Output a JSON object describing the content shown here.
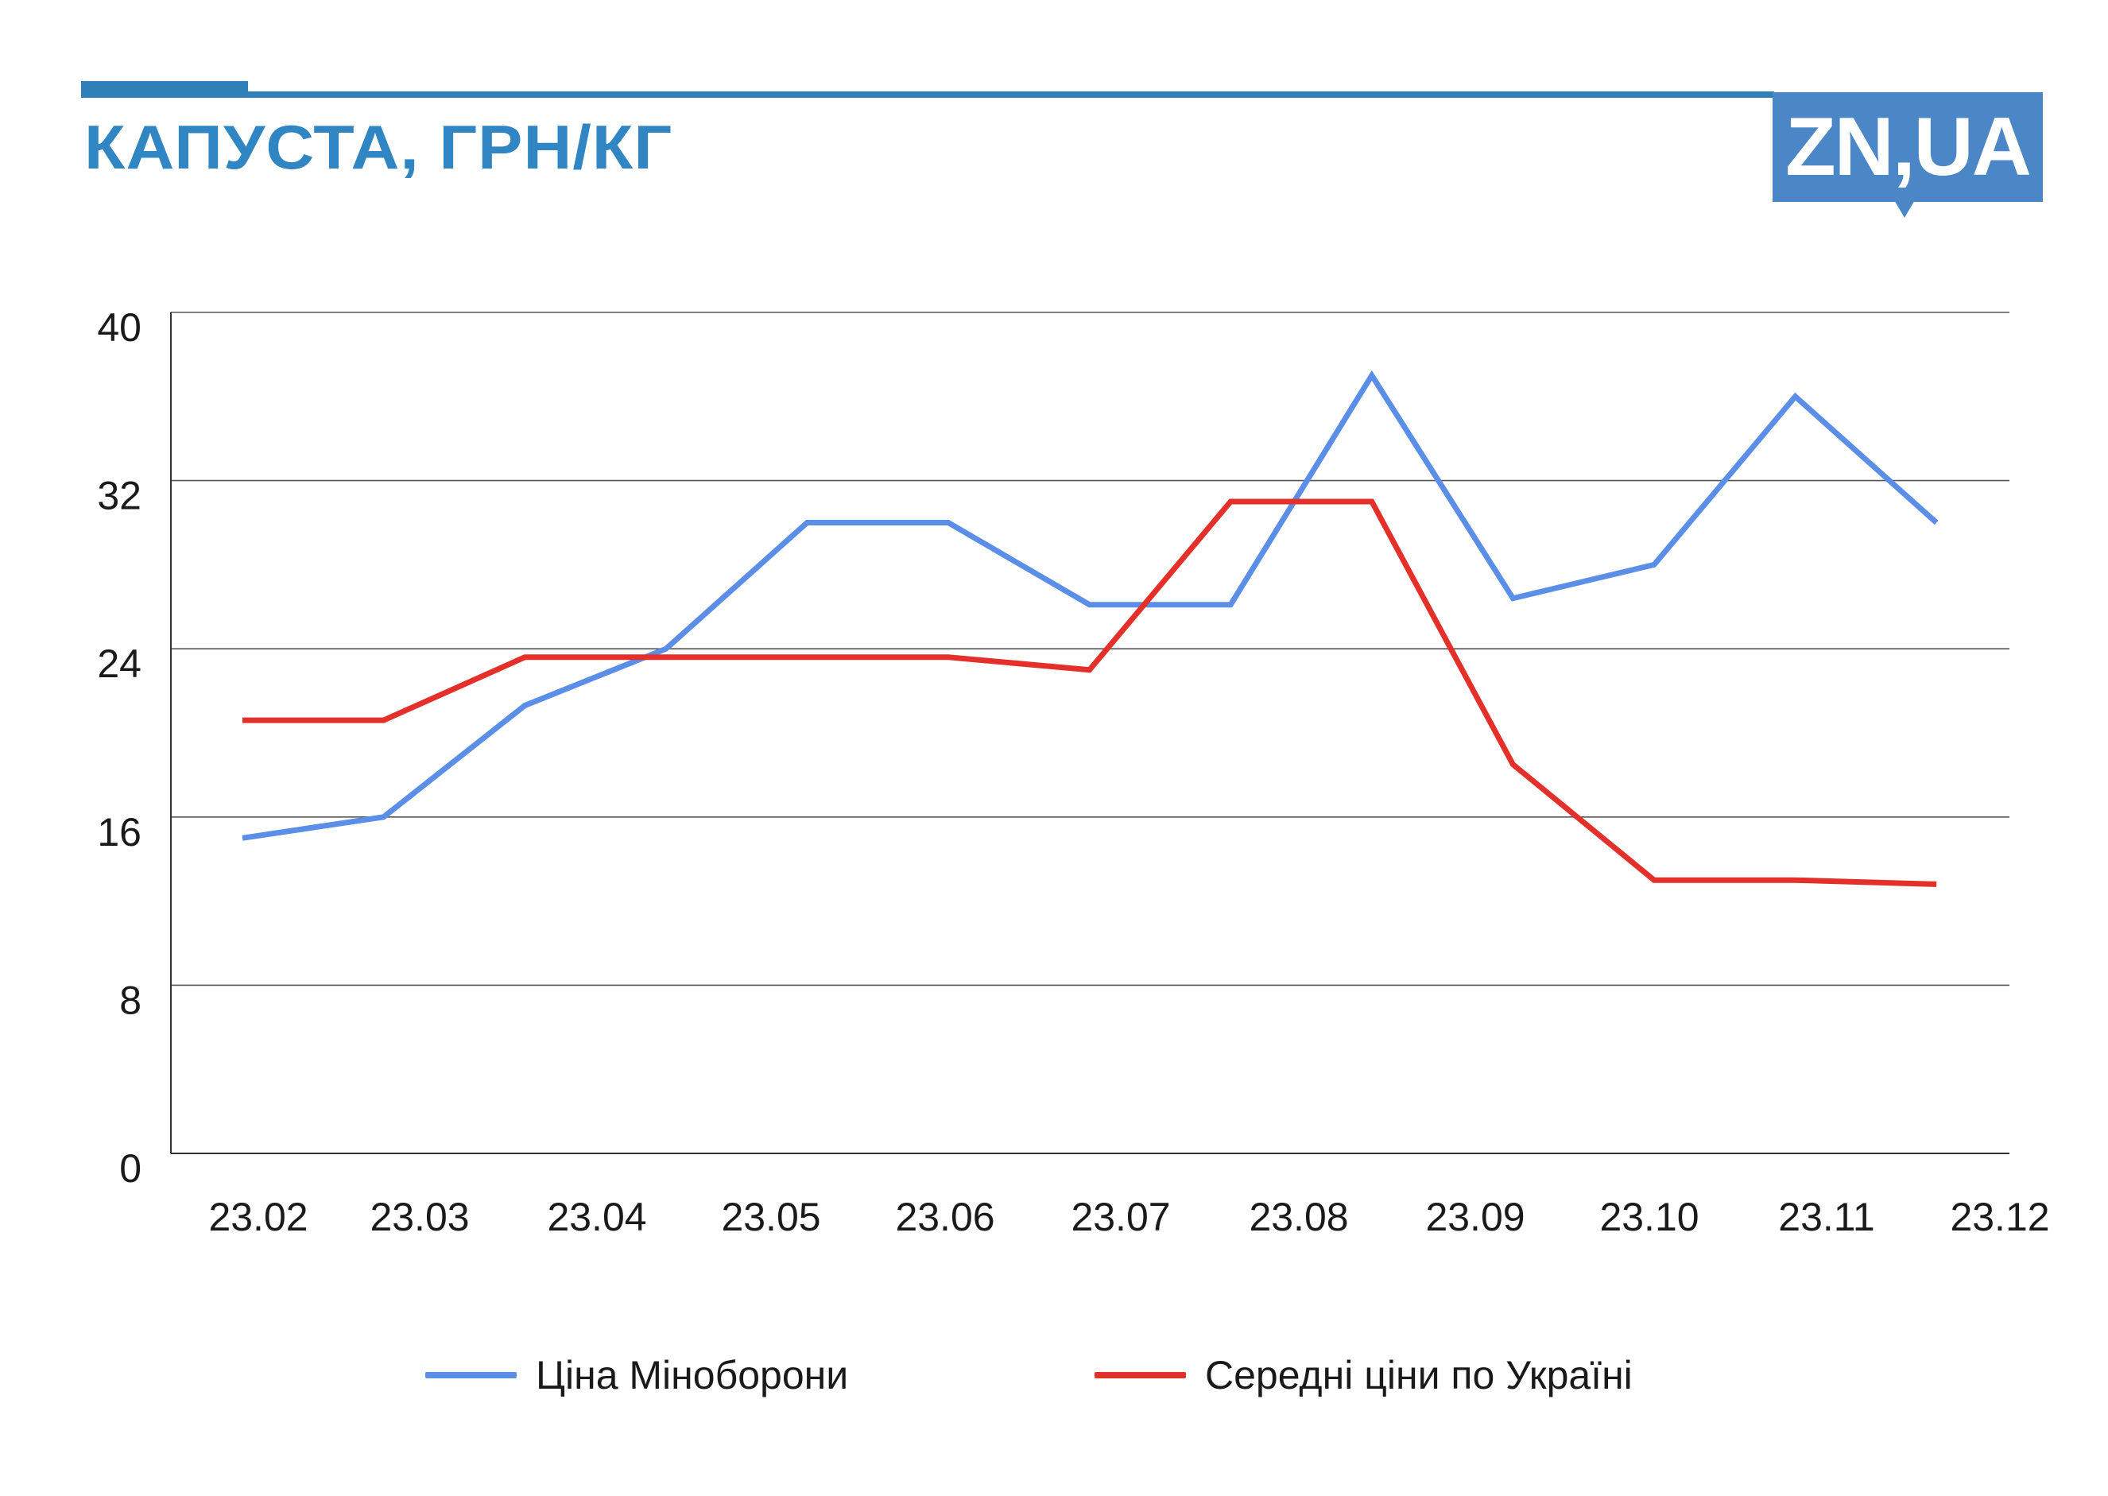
{
  "header": {
    "title": "КАПУСТА, ГРН/КГ",
    "logo_text": "ZN,UA"
  },
  "colors": {
    "brand": "#2f7fb8",
    "logo_bg": "#4b86c6",
    "series_ministry": "#5b8ee6",
    "series_ukraine": "#e3302a",
    "grid": "#555555"
  },
  "chart_data": {
    "type": "line",
    "title": "КАПУСТА, ГРН/КГ",
    "xlabel": "",
    "ylabel": "",
    "categories": [
      "23.02",
      "23.03",
      "23.04",
      "23.05",
      "23.06",
      "23.07",
      "23.08",
      "23.09",
      "23.10",
      "23.11",
      "23.12"
    ],
    "y_ticks": [
      0,
      8,
      16,
      24,
      32,
      40
    ],
    "ylim": [
      0,
      40
    ],
    "grid": true,
    "legend_position": "bottom",
    "series": [
      {
        "name": "Ціна Міноборони",
        "color": "#5b8ee6",
        "points": [
          [
            0.0,
            15.0
          ],
          [
            0.8,
            16.0
          ],
          [
            1.6,
            21.3
          ],
          [
            2.4,
            24.0
          ],
          [
            3.2,
            30.0
          ],
          [
            4.0,
            30.0
          ],
          [
            4.8,
            26.1
          ],
          [
            5.6,
            26.1
          ],
          [
            6.4,
            37.0
          ],
          [
            7.2,
            26.4
          ],
          [
            8.0,
            28.0
          ],
          [
            8.8,
            36.0
          ],
          [
            9.6,
            30.0
          ]
        ]
      },
      {
        "name": "Середні ціни по Україні",
        "color": "#e3302a",
        "points": [
          [
            0.0,
            20.6
          ],
          [
            0.8,
            20.6
          ],
          [
            1.6,
            23.6
          ],
          [
            2.4,
            23.6
          ],
          [
            3.2,
            23.6
          ],
          [
            4.0,
            23.6
          ],
          [
            4.8,
            23.0
          ],
          [
            5.6,
            31.0
          ],
          [
            6.4,
            31.0
          ],
          [
            7.2,
            18.5
          ],
          [
            8.0,
            13.0
          ],
          [
            8.8,
            13.0
          ],
          [
            9.6,
            12.8
          ]
        ]
      }
    ]
  }
}
